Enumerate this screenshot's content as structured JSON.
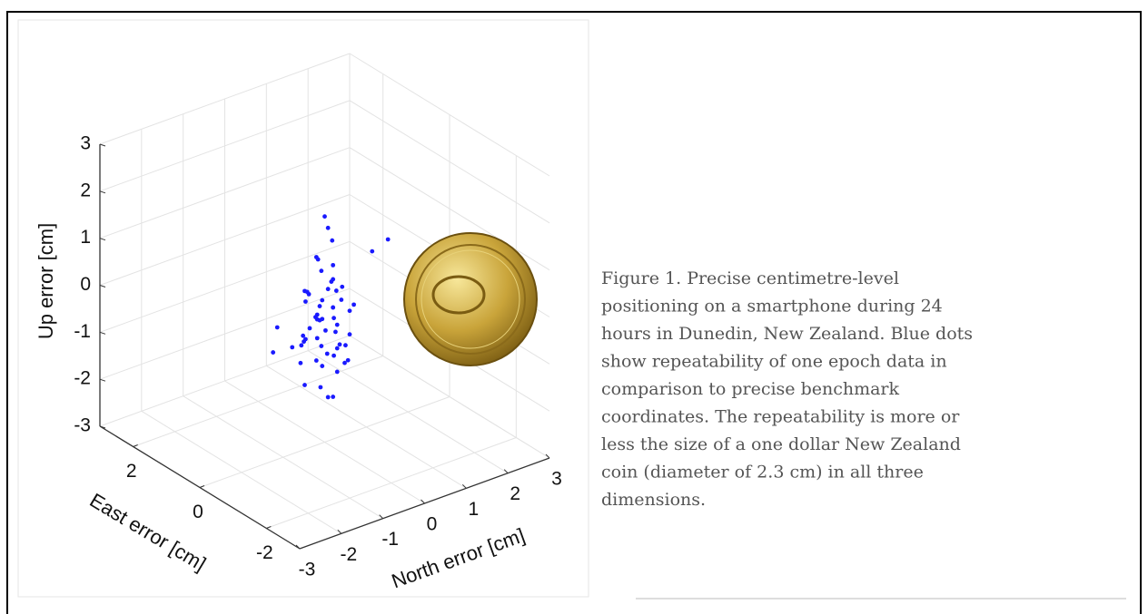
{
  "chart_data": {
    "type": "scatter3d",
    "xlabel": "East error [cm]",
    "ylabel": "North error [cm]",
    "zlabel": "Up error [cm]",
    "xlim": [
      -3,
      3
    ],
    "ylim": [
      -3,
      3
    ],
    "zlim": [
      -3,
      3
    ],
    "xticks": [
      -2,
      0,
      2
    ],
    "yticks": [
      -3,
      -2,
      -1,
      0,
      1,
      2,
      3
    ],
    "zticks": [
      -3,
      -2,
      -1,
      0,
      1,
      2,
      3
    ],
    "grid": true,
    "color": "#1a1aff",
    "x": [
      0.1,
      -0.1,
      0.2,
      0.0,
      -0.2,
      0.1,
      0.0,
      -0.1,
      0.2,
      0.0,
      0.1,
      -0.2,
      0.0,
      0.1,
      -0.1,
      0.2,
      0.0,
      -0.1,
      0.1,
      0.0,
      -0.2,
      0.1,
      0.0,
      0.2,
      -0.1,
      0.0,
      0.1,
      -0.1,
      0.2,
      0.0,
      0.1,
      -0.2,
      0.0,
      0.1,
      -0.1,
      0.0,
      0.2,
      -0.1,
      0.0,
      0.1,
      -0.3,
      0.3,
      0.0,
      0.1,
      -0.1,
      0.0,
      0.2,
      -0.2,
      0.1,
      0.0,
      -0.4,
      0.3,
      0.0,
      0.1,
      -0.1,
      0.2,
      0.0,
      -0.1,
      0.1,
      0.0
    ],
    "y": [
      -0.1,
      0.2,
      -0.3,
      0.4,
      0.0,
      -0.5,
      0.3,
      -0.2,
      0.1,
      0.6,
      -0.4,
      0.2,
      -0.1,
      0.5,
      -0.6,
      0.0,
      0.3,
      -0.3,
      0.1,
      -0.2,
      0.4,
      -0.1,
      0.2,
      -0.4,
      0.0,
      0.7,
      -0.7,
      0.1,
      -0.2,
      0.3,
      0.0,
      -0.1,
      0.2,
      -0.3,
      0.4,
      -0.5,
      0.1,
      0.0,
      -0.2,
      0.3,
      0.9,
      -0.9,
      0.2,
      -0.1,
      0.0,
      0.5,
      -0.3,
      0.1,
      -0.4,
      0.2,
      1.2,
      -1.0,
      0.0,
      0.3,
      -0.2,
      0.1,
      0.6,
      -0.5,
      0.0,
      0.2
    ],
    "z": [
      -0.3,
      0.2,
      -0.8,
      -0.1,
      0.5,
      -1.2,
      -0.6,
      0.0,
      -1.5,
      -0.4,
      0.3,
      -0.9,
      -1.8,
      0.1,
      -0.5,
      0.8,
      -1.1,
      -0.2,
      -0.7,
      1.0,
      -1.3,
      -0.4,
      0.4,
      -0.9,
      -2.0,
      -0.3,
      -0.8,
      1.3,
      -0.6,
      -1.6,
      0.6,
      -1.0,
      -0.2,
      0.2,
      -1.4,
      -0.7,
      -0.1,
      1.6,
      -1.2,
      -0.5,
      0.9,
      -0.4,
      -2.1,
      -0.8,
      0.3,
      -1.1,
      0.0,
      -0.6,
      -1.7,
      0.7,
      1.1,
      -0.9,
      1.8,
      -1.3,
      -0.3,
      -0.5,
      -0.9,
      0.4,
      -1.0,
      -0.2
    ]
  },
  "caption_lines": [
    "Figure 1. Precise centimetre-level",
    "positioning on a smartphone during 24",
    "hours in Dunedin, New Zealand. Blue dots",
    "show repeatability of one epoch data in",
    "comparison to precise benchmark",
    "coordinates. The repeatability is more or",
    "less the size of a one dollar New Zealand",
    "coin (diameter of 2.3 cm) in all three",
    "dimensions."
  ]
}
